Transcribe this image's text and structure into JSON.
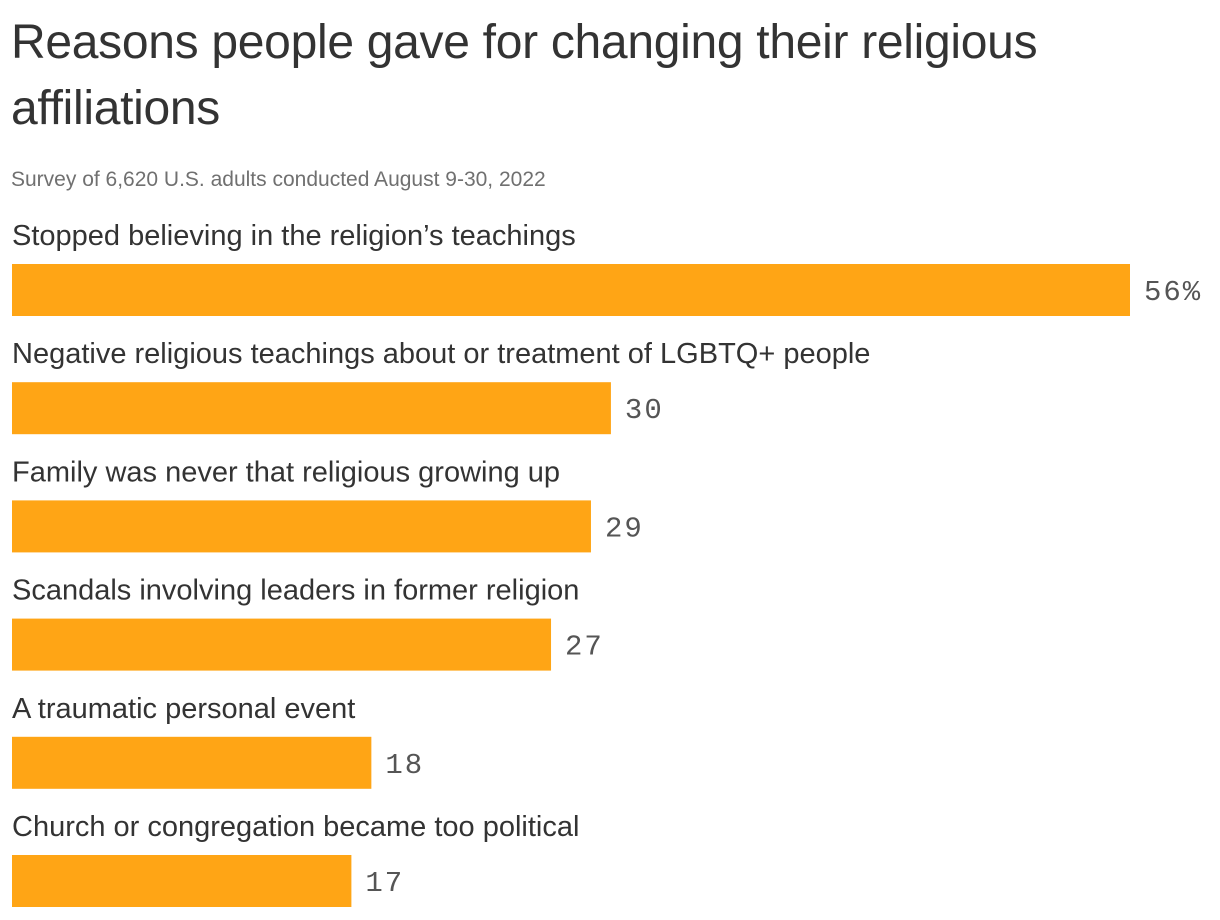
{
  "title": "Reasons people gave for changing their religious affiliations",
  "subtitle": "Survey of 6,620 U.S. adults conducted August 9-30, 2022",
  "colors": {
    "bar": "#FFA515",
    "text": "#333333",
    "subtext": "#707070",
    "value_text": "#555555"
  },
  "chart_data": {
    "type": "bar",
    "orientation": "horizontal",
    "categories": [
      "Stopped believing in the religion’s teachings",
      "Negative religious teachings about or treatment of LGBTQ+ people",
      "Family was never that religious growing up",
      "Scandals involving leaders in former religion",
      "A traumatic personal event",
      "Church or congregation became too political"
    ],
    "values": [
      56,
      30,
      29,
      27,
      18,
      17
    ],
    "value_labels": [
      "56%",
      "30",
      "29",
      "27",
      "18",
      "17"
    ],
    "unit": "%",
    "xlim": [
      0,
      56
    ],
    "grid": false,
    "legend": "none"
  }
}
